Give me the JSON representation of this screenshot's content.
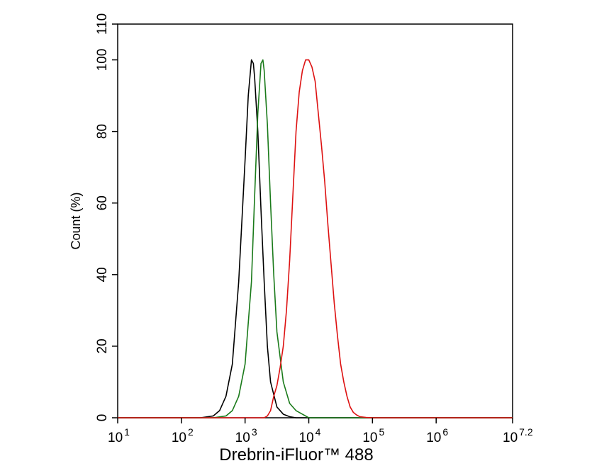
{
  "chart_data": {
    "type": "line",
    "xlabel": "Drebrin-iFluor™ 488",
    "ylabel": "Count  (%)",
    "x_scale": "log10",
    "xlim": [
      10,
      15848932
    ],
    "ylim": [
      0,
      110
    ],
    "grid": false,
    "legend": "none",
    "x_ticks": [
      {
        "base": "10",
        "exp": "1",
        "value": 10
      },
      {
        "base": "10",
        "exp": "2",
        "value": 100
      },
      {
        "base": "10",
        "exp": "3",
        "value": 1000
      },
      {
        "base": "10",
        "exp": "4",
        "value": 10000
      },
      {
        "base": "10",
        "exp": "5",
        "value": 100000
      },
      {
        "base": "10",
        "exp": "6",
        "value": 1000000
      },
      {
        "base": "10",
        "exp": "7.2",
        "value": 15848932
      }
    ],
    "y_ticks": [
      {
        "label": "0",
        "value": 0
      },
      {
        "label": "20",
        "value": 20
      },
      {
        "label": "40",
        "value": 40
      },
      {
        "label": "60",
        "value": 60
      },
      {
        "label": "80",
        "value": 80
      },
      {
        "label": "100",
        "value": 100
      },
      {
        "label": "110",
        "value": 110
      }
    ],
    "series": [
      {
        "color": "#000000",
        "x": [
          10,
          200,
          316,
          398,
          501,
          631,
          794,
          1000,
          1122,
          1259,
          1349,
          1413,
          1585,
          1778,
          1995,
          2239,
          2512,
          3162,
          3981,
          5012,
          6310,
          15848932
        ],
        "y": [
          0,
          0,
          0.5,
          2,
          6,
          15,
          38,
          72,
          90,
          100,
          99,
          95,
          80,
          58,
          38,
          20,
          10,
          3,
          1,
          0.3,
          0,
          0
        ]
      },
      {
        "color": "#1a7a1a",
        "x": [
          10,
          316,
          501,
          631,
          794,
          1000,
          1259,
          1413,
          1585,
          1778,
          1905,
          1995,
          2239,
          2512,
          2818,
          3162,
          3981,
          5012,
          6310,
          7943,
          10000,
          15848932
        ],
        "y": [
          0,
          0,
          0.5,
          2,
          6,
          15,
          38,
          62,
          85,
          99,
          100,
          97,
          82,
          60,
          40,
          24,
          10,
          4,
          2,
          1,
          0,
          0
        ]
      },
      {
        "color": "#dd1111",
        "x": [
          10,
          1995,
          2239,
          2512,
          2818,
          3162,
          3548,
          3981,
          4467,
          5012,
          5623,
          6310,
          7079,
          7943,
          8913,
          10000,
          11220,
          12589,
          14125,
          15849,
          17783,
          19953,
          22387,
          25119,
          28184,
          31623,
          35481,
          39811,
          44668,
          50119,
          56234,
          63096,
          79433,
          100000,
          15848932
        ],
        "y": [
          0,
          0,
          0.5,
          2,
          6,
          9,
          14,
          20,
          30,
          44,
          62,
          80,
          91,
          97,
          100,
          100,
          98,
          94,
          85,
          76,
          66,
          54,
          43,
          32,
          23,
          15,
          10,
          6,
          3,
          1.5,
          0.8,
          0.3,
          0.1,
          0,
          0
        ]
      }
    ]
  }
}
